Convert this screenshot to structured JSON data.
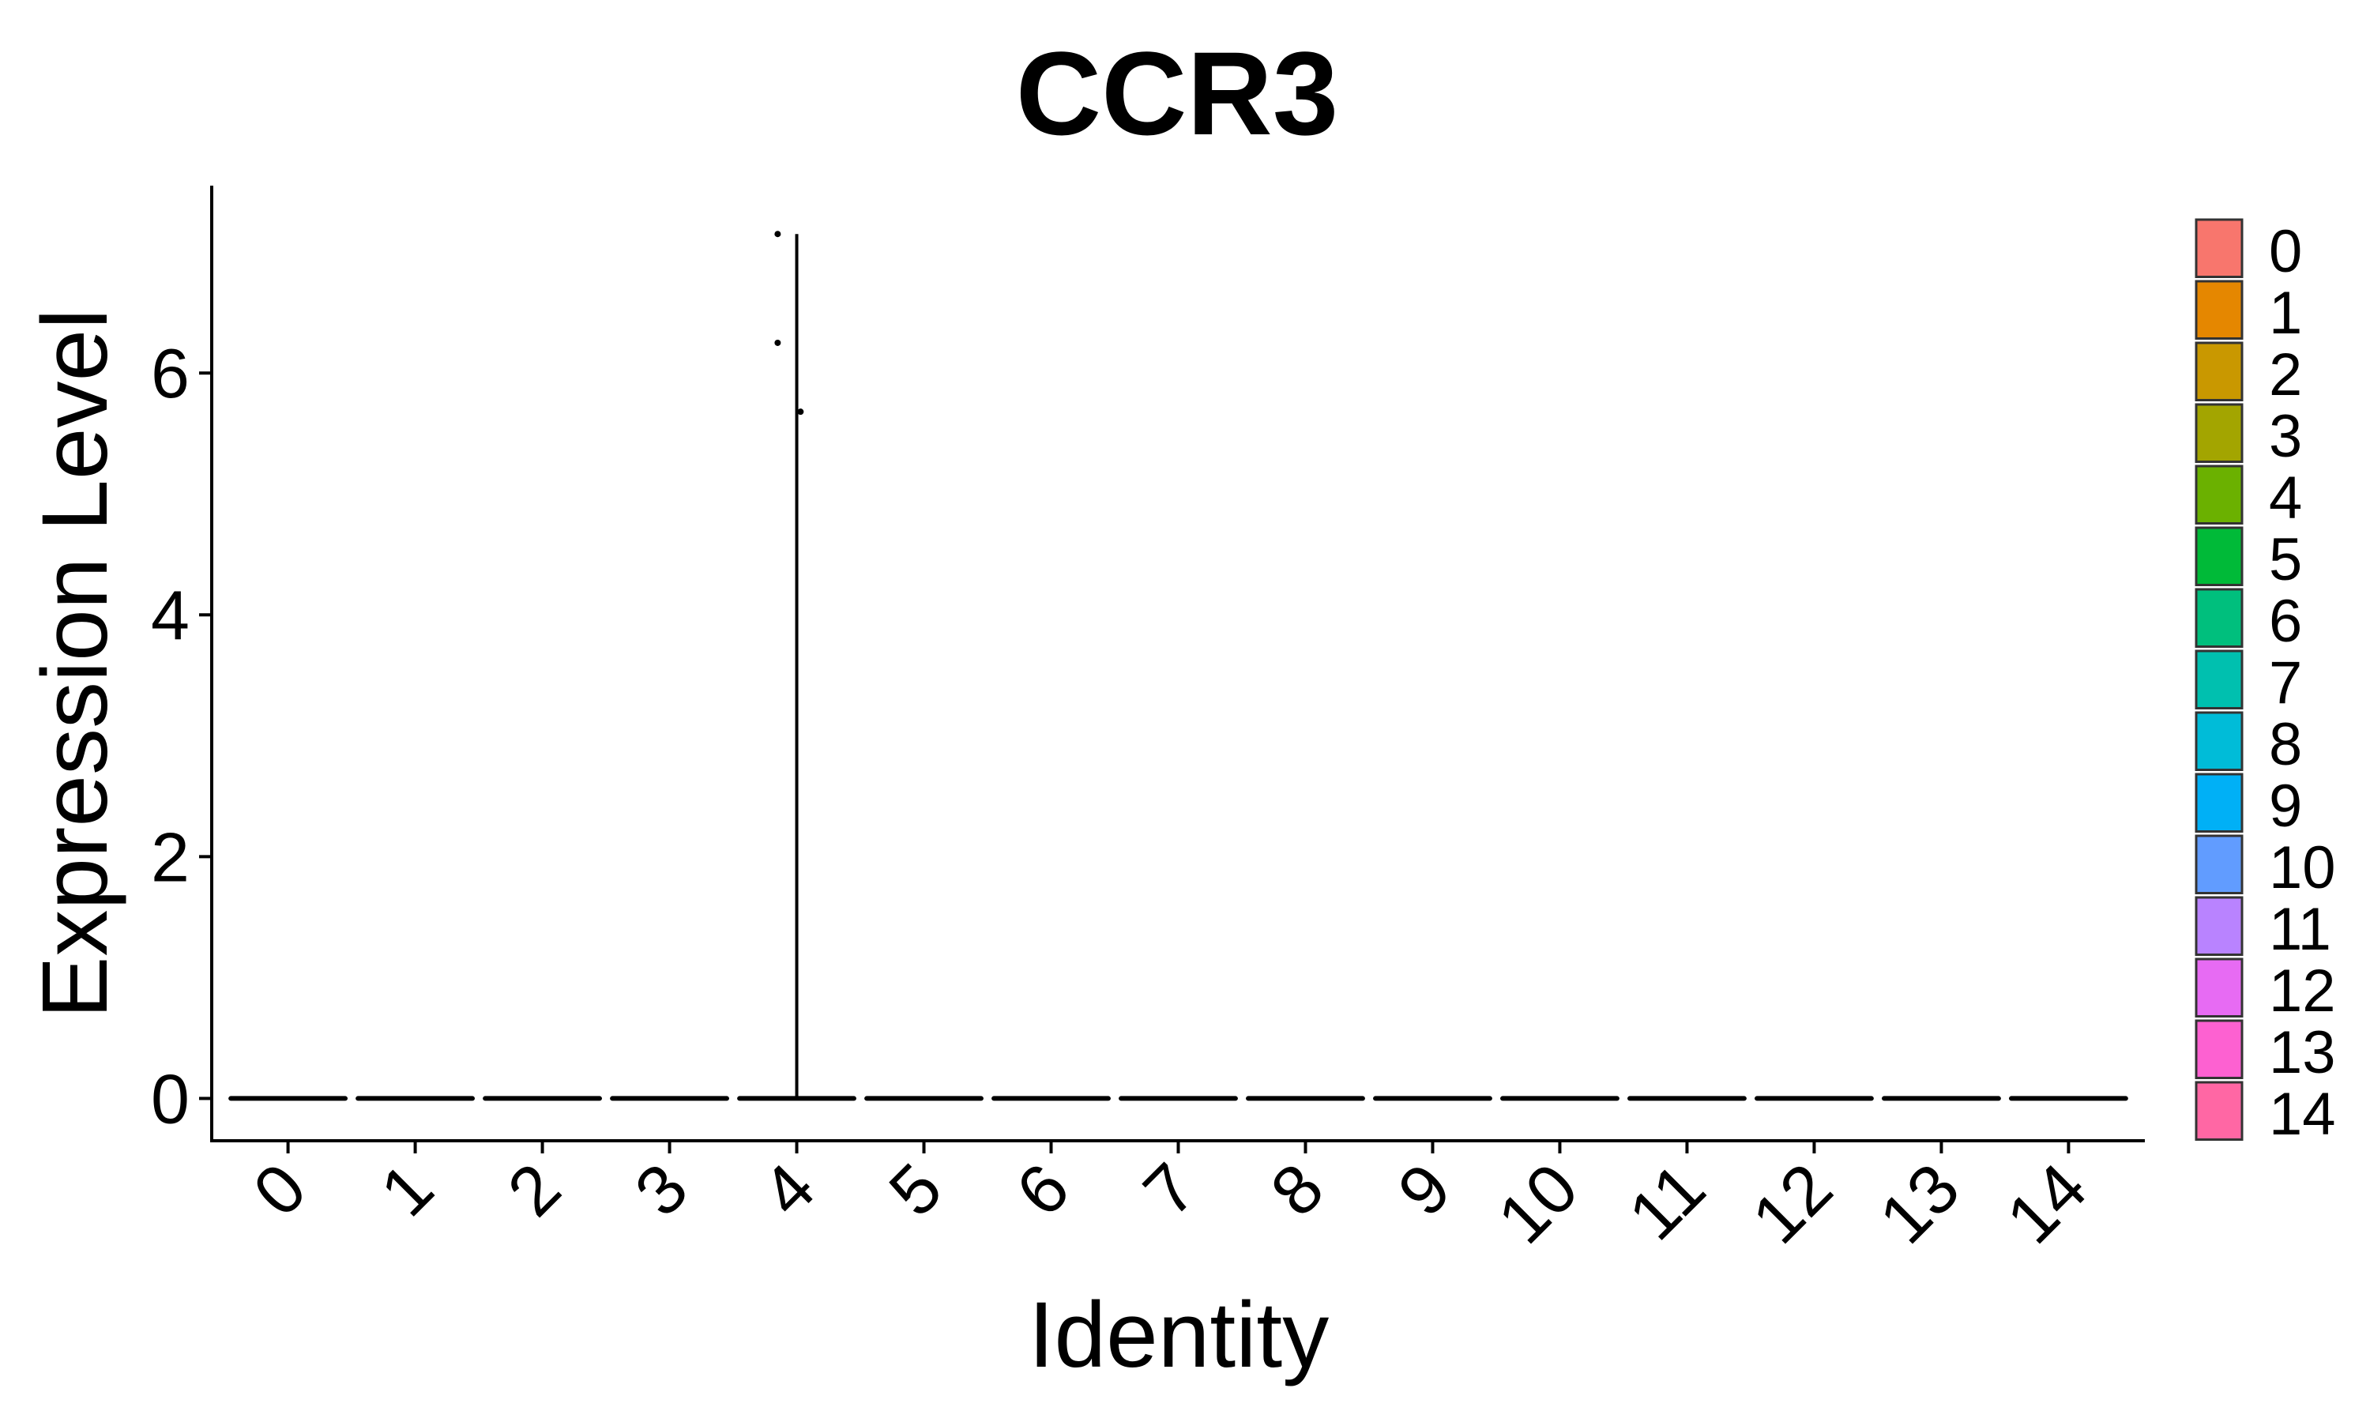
{
  "chart_data": {
    "type": "violin",
    "title": "CCR3",
    "xlabel": "Identity",
    "ylabel": "Expression Level",
    "ylim": [
      -0.35,
      7.55
    ],
    "yticks": [
      0,
      2,
      4,
      6
    ],
    "categories": [
      "0",
      "1",
      "2",
      "3",
      "4",
      "5",
      "6",
      "7",
      "8",
      "9",
      "10",
      "11",
      "12",
      "13",
      "14"
    ],
    "colors": [
      "#F8766D",
      "#E58700",
      "#C99800",
      "#A3A500",
      "#6BB100",
      "#00BA38",
      "#00BF7D",
      "#00C0AF",
      "#00BCD8",
      "#00B0F6",
      "#619CFF",
      "#B983FF",
      "#E76BF3",
      "#FD61D1",
      "#FF67A4"
    ],
    "series": [
      {
        "identity": "0",
        "max": 0
      },
      {
        "identity": "1",
        "max": 0
      },
      {
        "identity": "2",
        "max": 0
      },
      {
        "identity": "3",
        "max": 0
      },
      {
        "identity": "4",
        "max": 7.15
      },
      {
        "identity": "5",
        "max": 0
      },
      {
        "identity": "6",
        "max": 0
      },
      {
        "identity": "7",
        "max": 0
      },
      {
        "identity": "8",
        "max": 0
      },
      {
        "identity": "9",
        "max": 0
      },
      {
        "identity": "10",
        "max": 0
      },
      {
        "identity": "11",
        "max": 0
      },
      {
        "identity": "12",
        "max": 0
      },
      {
        "identity": "13",
        "max": 0
      },
      {
        "identity": "14",
        "max": 0
      }
    ],
    "points": [
      {
        "identity": "4",
        "offset": -0.15,
        "y": 7.15
      },
      {
        "identity": "4",
        "offset": -0.15,
        "y": 6.25
      },
      {
        "identity": "4",
        "offset": 0.03,
        "y": 5.68
      }
    ],
    "legend": {
      "position": "right",
      "entries": [
        "0",
        "1",
        "2",
        "3",
        "4",
        "5",
        "6",
        "7",
        "8",
        "9",
        "10",
        "11",
        "12",
        "13",
        "14"
      ]
    },
    "grid": false
  }
}
